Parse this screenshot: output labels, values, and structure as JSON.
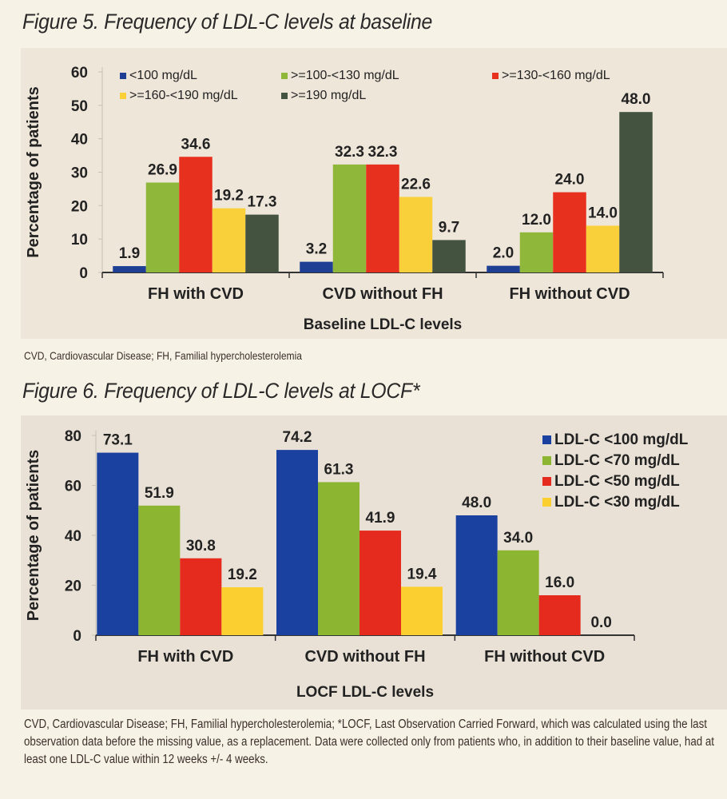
{
  "figures": [
    {
      "title": "Figure 5. Frequency of LDL-C levels at baseline",
      "footnote": "CVD, Cardiovascular Disease; FH, Familial hypercholesterolemia"
    },
    {
      "title": "Figure 6. Frequency of LDL-C levels at LOCF*",
      "footnote": "CVD, Cardiovascular Disease; FH, Familial hypercholesterolemia; *LOCF, Last Observation Carried Forward, which was calculated using the last observation data before the missing value, as a replacement. Data were collected only from patients who, in addition to their baseline value, had at least one LDL-C value within 12 weeks +/- 4 weeks."
    }
  ],
  "chart_data": [
    {
      "type": "bar",
      "title": "Figure 5. Frequency of LDL-C levels at baseline",
      "xlabel": "Baseline LDL-C levels",
      "ylabel": "Percentage of patients",
      "ylim": [
        0,
        60
      ],
      "yticks": [
        0,
        10,
        20,
        30,
        40,
        50,
        60
      ],
      "legend_position": "top",
      "categories": [
        "FH with CVD",
        "CVD without FH",
        "FH without CVD"
      ],
      "series": [
        {
          "name": "<100 mg/dL",
          "color": "#1f3f94",
          "values": [
            1.9,
            3.2,
            2.0
          ]
        },
        {
          "name": ">=100-<130 mg/dL",
          "color": "#8fb83a",
          "values": [
            26.9,
            32.3,
            12.0
          ]
        },
        {
          "name": ">=130-<160 mg/dL",
          "color": "#e8301e",
          "values": [
            34.6,
            32.3,
            24.0
          ]
        },
        {
          "name": ">=160-<190 mg/dL",
          "color": "#f9d03a",
          "values": [
            19.2,
            22.6,
            14.0
          ]
        },
        {
          "name": ">=190 mg/dL",
          "color": "#43533f",
          "values": [
            17.3,
            9.7,
            48.0
          ]
        }
      ],
      "data_labels": [
        [
          "1.9",
          "3.2",
          "2.0"
        ],
        [
          "26.9",
          "32.3",
          "12.0"
        ],
        [
          "34.6",
          "32.3",
          "24.0"
        ],
        [
          "19.2",
          "22.6",
          "14.0"
        ],
        [
          "17.3",
          "9.7",
          "48.0"
        ]
      ]
    },
    {
      "type": "bar",
      "title": "Figure 6. Frequency of LDL-C levels at LOCF*",
      "xlabel": "LOCF LDL-C levels",
      "ylabel": "Percentage of patients",
      "ylim": [
        0,
        80
      ],
      "yticks": [
        0,
        20,
        40,
        60,
        80
      ],
      "legend_position": "top-right",
      "categories": [
        "FH with CVD",
        "CVD without FH",
        "FH without CVD"
      ],
      "series": [
        {
          "name": "LDL-C <100 mg/dL",
          "color": "#1a40a0",
          "values": [
            73.1,
            74.2,
            48.0
          ]
        },
        {
          "name": "LDL-C <70 mg/dL",
          "color": "#8cb532",
          "values": [
            51.9,
            61.3,
            34.0
          ]
        },
        {
          "name": "LDL-C <50 mg/dL",
          "color": "#e52a1e",
          "values": [
            30.8,
            41.9,
            16.0
          ]
        },
        {
          "name": "LDL-C <30 mg/dL",
          "color": "#fbcf30",
          "values": [
            19.2,
            19.4,
            0.0
          ]
        }
      ],
      "data_labels": [
        [
          "73.1",
          "74.2",
          "48.0"
        ],
        [
          "51.9",
          "61.3",
          "34.0"
        ],
        [
          "30.8",
          "41.9",
          "16.0"
        ],
        [
          "19.2",
          "19.4",
          "0.0"
        ]
      ]
    }
  ]
}
